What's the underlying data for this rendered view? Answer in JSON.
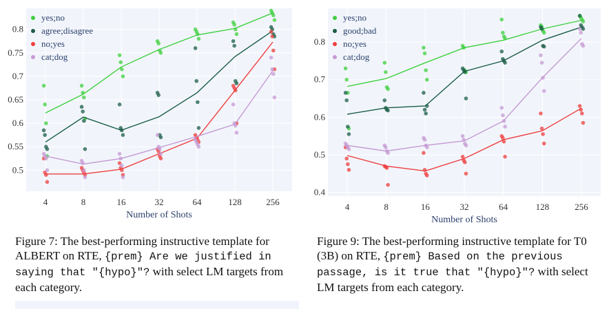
{
  "figures": [
    {
      "caption": {
        "label": "Figure 7:",
        "text_before": " The best-performing instructive template for ALBERT on RTE, ",
        "code": "{prem} Are we justified in saying that \"{hypo}\"?",
        "text_after": " with select LM targets from each category."
      }
    },
    {
      "caption": {
        "label": "Figure 9:",
        "text_before": " The best-performing instructive template for T0 (3B) on RTE, ",
        "code": "{prem} Based on the previous passage, is it true that \"{hypo}\"?",
        "text_after": " with select LM targets from each category."
      }
    }
  ],
  "chart_data": [
    {
      "type": "line+scatter",
      "xlabel": "Number of Shots",
      "ylabel": "",
      "x": [
        4,
        8,
        16,
        32,
        64,
        128,
        256
      ],
      "x_tick_labels": [
        "4",
        "8",
        "16",
        "32",
        "64",
        "128",
        "256"
      ],
      "x_scale": "log2",
      "ylim": [
        0.455,
        0.845
      ],
      "y_ticks": [
        0.5,
        0.55,
        0.6,
        0.65,
        0.7,
        0.75,
        0.8
      ],
      "y_tick_labels": [
        "0.5",
        "0.55",
        "0.6",
        "0.65",
        "0.7",
        "0.75",
        "0.8"
      ],
      "grid": true,
      "legend_position": "top-left",
      "series": [
        {
          "name": "yes;no",
          "color": "#3fcf3f",
          "mean": [
            0.622,
            0.662,
            0.72,
            0.757,
            0.788,
            0.802,
            0.835
          ],
          "points": [
            [
              0.68,
              0.64,
              0.6,
              0.53
            ],
            [
              0.68,
              0.665,
              0.655,
              0.61
            ],
            [
              0.745,
              0.73,
              0.715,
              0.7
            ],
            [
              0.775,
              0.77,
              0.755,
              0.75
            ],
            [
              0.8,
              0.795,
              0.79,
              0.78
            ],
            [
              0.815,
              0.81,
              0.8,
              0.79
            ],
            [
              0.84,
              0.835,
              0.83,
              0.82
            ]
          ]
        },
        {
          "name": "agree;disagree",
          "color": "#1a5c46",
          "mean": [
            0.56,
            0.613,
            0.585,
            0.614,
            0.665,
            0.742,
            0.797
          ],
          "points": [
            [
              0.585,
              0.575,
              0.55,
              0.545
            ],
            [
              0.635,
              0.625,
              0.605,
              0.545
            ],
            [
              0.64,
              0.59,
              0.585,
              0.575
            ],
            [
              0.665,
              0.66,
              0.575,
              0.57
            ],
            [
              0.76,
              0.69,
              0.645,
              0.59
            ],
            [
              0.775,
              0.765,
              0.69,
              0.685
            ],
            [
              0.805,
              0.8,
              0.79,
              0.785
            ]
          ]
        },
        {
          "name": "no;yes",
          "color": "#ee3e3e",
          "mean": [
            0.492,
            0.492,
            0.502,
            0.535,
            0.568,
            0.67,
            0.773
          ],
          "points": [
            [
              0.525,
              0.495,
              0.49,
              0.475
            ],
            [
              0.505,
              0.5,
              0.495,
              0.49
            ],
            [
              0.515,
              0.505,
              0.5,
              0.49
            ],
            [
              0.545,
              0.54,
              0.53,
              0.525
            ],
            [
              0.575,
              0.57,
              0.565,
              0.56
            ],
            [
              0.68,
              0.675,
              0.67,
              0.6
            ],
            [
              0.795,
              0.785,
              0.755,
              0.715
            ]
          ]
        },
        {
          "name": "cat;dog",
          "color": "#c59ad4",
          "mean": [
            0.53,
            0.513,
            0.525,
            0.548,
            0.572,
            0.598,
            0.712
          ],
          "points": [
            [
              0.535,
              0.53,
              0.525,
              0.5
            ],
            [
              0.52,
              0.515,
              0.5,
              0.485
            ],
            [
              0.535,
              0.525,
              0.51,
              0.485
            ],
            [
              0.575,
              0.55,
              0.545,
              0.535
            ],
            [
              0.565,
              0.56,
              0.555,
              0.55
            ],
            [
              0.64,
              0.6,
              0.595,
              0.58
            ],
            [
              0.74,
              0.715,
              0.705,
              0.655
            ]
          ]
        }
      ]
    },
    {
      "type": "line+scatter",
      "xlabel": "Number of Shots",
      "ylabel": "",
      "x": [
        4,
        8,
        16,
        32,
        64,
        128,
        256
      ],
      "x_tick_labels": [
        "4",
        "8",
        "16",
        "32",
        "64",
        "128",
        "256"
      ],
      "x_scale": "log2",
      "ylim": [
        0.39,
        0.89
      ],
      "y_ticks": [
        0.4,
        0.5,
        0.6,
        0.7,
        0.8
      ],
      "y_tick_labels": [
        "0.4",
        "0.5",
        "0.6",
        "0.7",
        "0.8"
      ],
      "grid": true,
      "legend_position": "top-left",
      "series": [
        {
          "name": "yes;no",
          "color": "#3fcf3f",
          "mean": [
            0.682,
            0.703,
            0.745,
            0.785,
            0.805,
            0.835,
            0.858
          ],
          "points": [
            [
              0.73,
              0.7,
              0.665,
              0.57
            ],
            [
              0.745,
              0.72,
              0.68,
              0.675
            ],
            [
              0.785,
              0.77,
              0.725,
              0.7
            ],
            [
              0.79,
              0.785,
              0.725,
              0.72
            ],
            [
              0.86,
              0.825,
              0.815,
              0.81
            ],
            [
              0.845,
              0.84,
              0.83,
              0.825
            ],
            [
              0.87,
              0.865,
              0.86,
              0.855
            ]
          ]
        },
        {
          "name": "good;bad",
          "color": "#1a5c46",
          "mean": [
            0.608,
            0.625,
            0.63,
            0.722,
            0.75,
            0.805,
            0.84
          ],
          "points": [
            [
              0.665,
              0.645,
              0.575,
              0.555
            ],
            [
              0.645,
              0.625,
              0.62,
              0.618
            ],
            [
              0.665,
              0.62,
              0.61,
              0.63
            ],
            [
              0.73,
              0.725,
              0.72,
              0.65
            ],
            [
              0.775,
              0.755,
              0.75,
              0.745
            ],
            [
              0.84,
              0.835,
              0.79,
              0.788
            ],
            [
              0.87,
              0.845,
              0.84,
              0.835
            ]
          ]
        },
        {
          "name": "no;yes",
          "color": "#ee3e3e",
          "mean": [
            0.498,
            0.47,
            0.457,
            0.49,
            0.54,
            0.564,
            0.624
          ],
          "points": [
            [
              0.52,
              0.49,
              0.475,
              0.46
            ],
            [
              0.47,
              0.468,
              0.465,
              0.42
            ],
            [
              0.505,
              0.46,
              0.45,
              0.445
            ],
            [
              0.495,
              0.485,
              0.48,
              0.45
            ],
            [
              0.55,
              0.545,
              0.535,
              0.495
            ],
            [
              0.61,
              0.57,
              0.555,
              0.53
            ],
            [
              0.63,
              0.62,
              0.61,
              0.585
            ]
          ]
        },
        {
          "name": "cat;dog",
          "color": "#c59ad4",
          "mean": [
            0.525,
            0.51,
            0.525,
            0.537,
            0.59,
            0.705,
            0.81
          ],
          "points": [
            [
              0.53,
              0.525,
              0.52,
              0.515
            ],
            [
              0.525,
              0.52,
              0.51,
              0.505
            ],
            [
              0.545,
              0.54,
              0.525,
              0.52
            ],
            [
              0.55,
              0.54,
              0.53,
              0.525
            ],
            [
              0.625,
              0.605,
              0.59,
              0.575
            ],
            [
              0.765,
              0.745,
              0.705,
              0.67
            ],
            [
              0.835,
              0.825,
              0.795,
              0.79
            ]
          ]
        }
      ]
    }
  ]
}
